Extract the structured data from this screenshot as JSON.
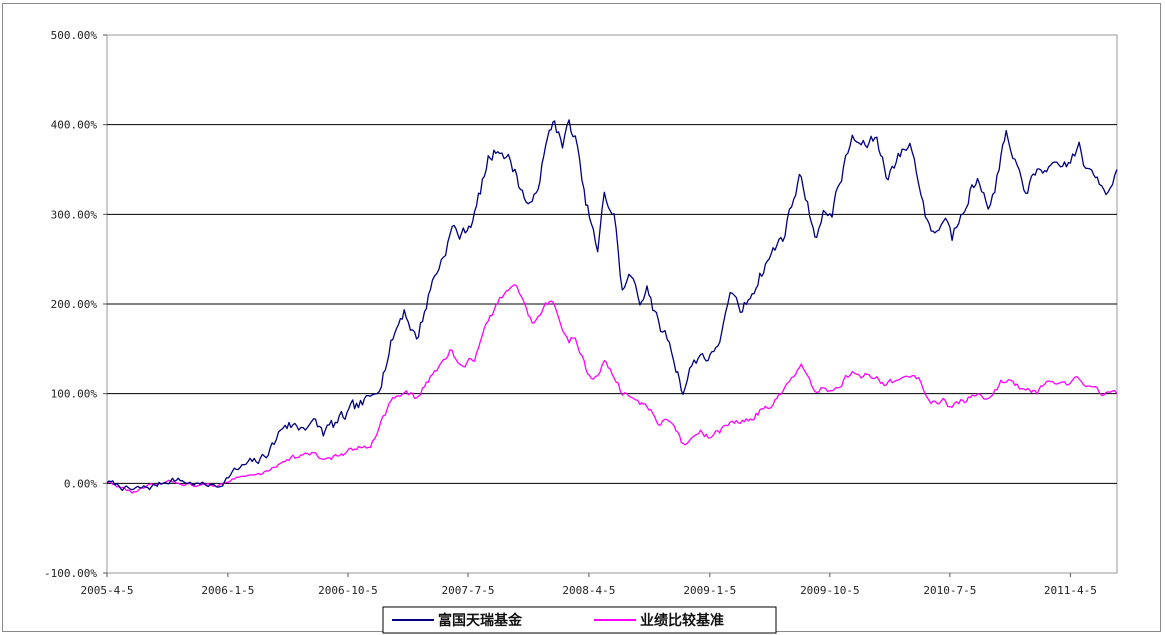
{
  "chart_data": {
    "type": "line",
    "title": "",
    "xlabel": "",
    "ylabel": "",
    "ylim": [
      -100,
      500
    ],
    "y_ticks": [
      "-100.00%",
      "0.00%",
      "100.00%",
      "200.00%",
      "300.00%",
      "400.00%",
      "500.00%"
    ],
    "y_tick_values": [
      -100,
      0,
      100,
      200,
      300,
      400,
      500
    ],
    "x_ticks": [
      "2005-4-5",
      "2006-1-5",
      "2006-10-5",
      "2007-7-5",
      "2008-4-5",
      "2009-1-5",
      "2009-10-5",
      "2010-7-5",
      "2011-4-5"
    ],
    "x_range": [
      "2005-04-05",
      "2011-07-20"
    ],
    "grid": "horizontal",
    "legend_position": "bottom",
    "series": [
      {
        "name": "富国天瑞基金",
        "color": "#000080",
        "points": [
          [
            "2005-04-05",
            2
          ],
          [
            "2005-06-01",
            -8
          ],
          [
            "2005-07-15",
            -4
          ],
          [
            "2005-09-01",
            5
          ],
          [
            "2005-10-15",
            0
          ],
          [
            "2005-12-15",
            -3
          ],
          [
            "2006-01-15",
            12
          ],
          [
            "2006-02-15",
            20
          ],
          [
            "2006-03-20",
            25
          ],
          [
            "2006-04-20",
            45
          ],
          [
            "2006-05-15",
            68
          ],
          [
            "2006-06-15",
            62
          ],
          [
            "2006-07-10",
            70
          ],
          [
            "2006-08-10",
            57
          ],
          [
            "2006-09-20",
            70
          ],
          [
            "2006-10-20",
            82
          ],
          [
            "2006-11-25",
            92
          ],
          [
            "2006-12-20",
            120
          ],
          [
            "2007-01-15",
            162
          ],
          [
            "2007-02-10",
            195
          ],
          [
            "2007-03-10",
            160
          ],
          [
            "2007-04-15",
            225
          ],
          [
            "2007-05-10",
            255
          ],
          [
            "2007-05-30",
            285
          ],
          [
            "2007-06-20",
            275
          ],
          [
            "2007-07-20",
            300
          ],
          [
            "2007-08-20",
            360
          ],
          [
            "2007-09-15",
            377
          ],
          [
            "2007-10-05",
            362
          ],
          [
            "2007-10-20",
            348
          ],
          [
            "2007-11-10",
            320
          ],
          [
            "2007-11-28",
            305
          ],
          [
            "2007-12-20",
            355
          ],
          [
            "2008-01-10",
            395
          ],
          [
            "2008-01-18",
            407
          ],
          [
            "2008-02-05",
            375
          ],
          [
            "2008-02-20",
            400
          ],
          [
            "2008-03-05",
            385
          ],
          [
            "2008-03-25",
            320
          ],
          [
            "2008-04-10",
            290
          ],
          [
            "2008-04-25",
            255
          ],
          [
            "2008-05-10",
            320
          ],
          [
            "2008-06-01",
            300
          ],
          [
            "2008-06-20",
            215
          ],
          [
            "2008-07-10",
            232
          ],
          [
            "2008-07-30",
            198
          ],
          [
            "2008-08-15",
            225
          ],
          [
            "2008-09-10",
            175
          ],
          [
            "2008-09-30",
            162
          ],
          [
            "2008-10-20",
            130
          ],
          [
            "2008-11-05",
            105
          ],
          [
            "2008-11-25",
            132
          ],
          [
            "2008-12-15",
            145
          ],
          [
            "2009-01-10",
            140
          ],
          [
            "2009-02-05",
            175
          ],
          [
            "2009-02-25",
            210
          ],
          [
            "2009-03-20",
            190
          ],
          [
            "2009-04-20",
            225
          ],
          [
            "2009-05-20",
            252
          ],
          [
            "2009-06-20",
            275
          ],
          [
            "2009-07-15",
            320
          ],
          [
            "2009-08-01",
            345
          ],
          [
            "2009-08-20",
            300
          ],
          [
            "2009-09-05",
            278
          ],
          [
            "2009-09-20",
            298
          ],
          [
            "2009-10-10",
            305
          ],
          [
            "2009-11-05",
            350
          ],
          [
            "2009-11-25",
            385
          ],
          [
            "2009-12-20",
            375
          ],
          [
            "2010-01-20",
            385
          ],
          [
            "2010-02-10",
            345
          ],
          [
            "2010-03-05",
            360
          ],
          [
            "2010-04-05",
            380
          ],
          [
            "2010-04-25",
            340
          ],
          [
            "2010-05-15",
            290
          ],
          [
            "2010-06-05",
            280
          ],
          [
            "2010-06-25",
            300
          ],
          [
            "2010-07-10",
            275
          ],
          [
            "2010-07-30",
            305
          ],
          [
            "2010-08-20",
            330
          ],
          [
            "2010-09-10",
            335
          ],
          [
            "2010-10-05",
            310
          ],
          [
            "2010-10-25",
            350
          ],
          [
            "2010-11-10",
            390
          ],
          [
            "2010-11-25",
            355
          ],
          [
            "2010-12-20",
            330
          ],
          [
            "2011-01-15",
            340
          ],
          [
            "2011-02-10",
            355
          ],
          [
            "2011-03-05",
            345
          ],
          [
            "2011-04-05",
            360
          ],
          [
            "2011-04-25",
            375
          ],
          [
            "2011-05-15",
            345
          ],
          [
            "2011-06-05",
            340
          ],
          [
            "2011-06-25",
            330
          ],
          [
            "2011-07-20",
            350
          ]
        ]
      },
      {
        "name": "业绩比较基准",
        "color": "#ff00ff",
        "points": [
          [
            "2005-04-05",
            2
          ],
          [
            "2005-06-01",
            -10
          ],
          [
            "2005-07-15",
            -3
          ],
          [
            "2005-09-01",
            2
          ],
          [
            "2005-10-15",
            -2
          ],
          [
            "2005-12-15",
            -2
          ],
          [
            "2006-01-15",
            5
          ],
          [
            "2006-02-15",
            8
          ],
          [
            "2006-03-20",
            10
          ],
          [
            "2006-04-20",
            18
          ],
          [
            "2006-05-15",
            28
          ],
          [
            "2006-06-15",
            30
          ],
          [
            "2006-07-10",
            33
          ],
          [
            "2006-08-10",
            27
          ],
          [
            "2006-09-20",
            32
          ],
          [
            "2006-10-20",
            36
          ],
          [
            "2006-11-25",
            45
          ],
          [
            "2006-12-20",
            70
          ],
          [
            "2007-01-15",
            95
          ],
          [
            "2007-02-10",
            100
          ],
          [
            "2007-03-10",
            95
          ],
          [
            "2007-04-15",
            120
          ],
          [
            "2007-05-10",
            140
          ],
          [
            "2007-05-30",
            150
          ],
          [
            "2007-06-20",
            128
          ],
          [
            "2007-07-20",
            140
          ],
          [
            "2007-08-20",
            180
          ],
          [
            "2007-09-15",
            205
          ],
          [
            "2007-10-05",
            215
          ],
          [
            "2007-10-20",
            222
          ],
          [
            "2007-11-10",
            200
          ],
          [
            "2007-11-28",
            180
          ],
          [
            "2007-12-20",
            195
          ],
          [
            "2008-01-10",
            205
          ],
          [
            "2008-01-18",
            195
          ],
          [
            "2008-02-05",
            170
          ],
          [
            "2008-02-20",
            160
          ],
          [
            "2008-03-05",
            165
          ],
          [
            "2008-03-25",
            135
          ],
          [
            "2008-04-10",
            115
          ],
          [
            "2008-04-25",
            118
          ],
          [
            "2008-05-10",
            135
          ],
          [
            "2008-06-01",
            120
          ],
          [
            "2008-06-20",
            100
          ],
          [
            "2008-07-10",
            98
          ],
          [
            "2008-07-30",
            90
          ],
          [
            "2008-08-15",
            85
          ],
          [
            "2008-09-10",
            68
          ],
          [
            "2008-09-30",
            72
          ],
          [
            "2008-10-20",
            55
          ],
          [
            "2008-11-05",
            42
          ],
          [
            "2008-11-25",
            48
          ],
          [
            "2008-12-15",
            55
          ],
          [
            "2009-01-10",
            50
          ],
          [
            "2009-02-05",
            60
          ],
          [
            "2009-02-25",
            70
          ],
          [
            "2009-03-20",
            68
          ],
          [
            "2009-04-20",
            78
          ],
          [
            "2009-05-20",
            88
          ],
          [
            "2009-06-20",
            100
          ],
          [
            "2009-07-15",
            118
          ],
          [
            "2009-08-01",
            130
          ],
          [
            "2009-08-20",
            110
          ],
          [
            "2009-09-05",
            98
          ],
          [
            "2009-09-20",
            105
          ],
          [
            "2009-10-10",
            102
          ],
          [
            "2009-11-05",
            115
          ],
          [
            "2009-11-25",
            125
          ],
          [
            "2009-12-20",
            120
          ],
          [
            "2010-01-20",
            118
          ],
          [
            "2010-02-10",
            110
          ],
          [
            "2010-03-05",
            115
          ],
          [
            "2010-04-05",
            118
          ],
          [
            "2010-04-25",
            115
          ],
          [
            "2010-05-15",
            98
          ],
          [
            "2010-06-05",
            90
          ],
          [
            "2010-06-25",
            92
          ],
          [
            "2010-07-10",
            82
          ],
          [
            "2010-07-30",
            90
          ],
          [
            "2010-08-20",
            95
          ],
          [
            "2010-09-10",
            98
          ],
          [
            "2010-10-05",
            95
          ],
          [
            "2010-10-25",
            110
          ],
          [
            "2010-11-10",
            118
          ],
          [
            "2010-11-25",
            112
          ],
          [
            "2010-12-20",
            103
          ],
          [
            "2011-01-15",
            100
          ],
          [
            "2011-02-10",
            108
          ],
          [
            "2011-03-05",
            105
          ],
          [
            "2011-04-05",
            110
          ],
          [
            "2011-04-25",
            115
          ],
          [
            "2011-05-15",
            108
          ],
          [
            "2011-06-05",
            105
          ],
          [
            "2011-06-25",
            100
          ],
          [
            "2011-07-20",
            100
          ]
        ]
      }
    ]
  }
}
